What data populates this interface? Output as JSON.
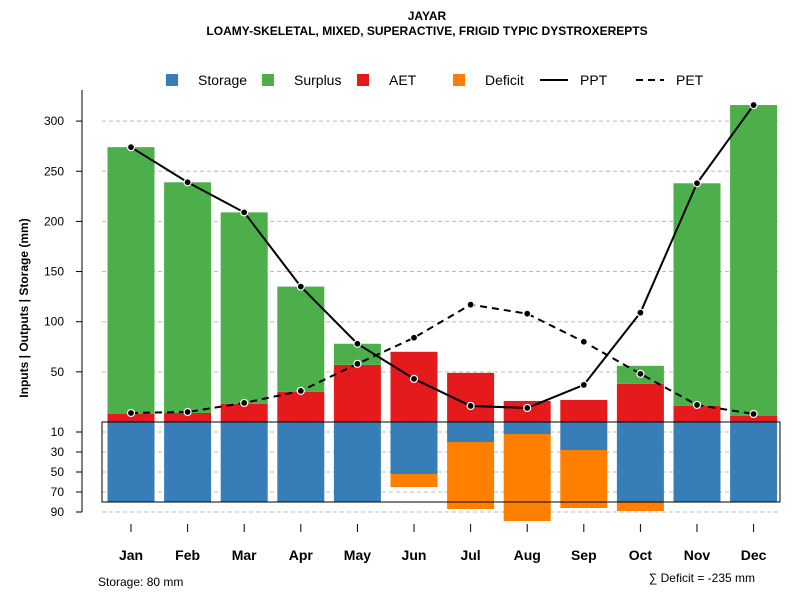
{
  "chart_data": {
    "type": "bar",
    "title": "JAYAR",
    "subtitle": "LOAMY-SKELETAL, MIXED, SUPERACTIVE, FRIGID TYPIC DYSTROXEREPTS",
    "ylabel": "Inputs | Outputs | Storage    (mm)",
    "categories": [
      "Jan",
      "Feb",
      "Mar",
      "Apr",
      "May",
      "Jun",
      "Jul",
      "Aug",
      "Sep",
      "Oct",
      "Nov",
      "Dec"
    ],
    "ylim_upper": [
      0,
      330
    ],
    "ylim_lower": [
      0,
      100
    ],
    "upper_ticks": [
      50,
      100,
      150,
      200,
      250,
      300
    ],
    "lower_ticks": [
      10,
      30,
      50,
      70,
      90
    ],
    "legend": [
      "Storage",
      "Surplus",
      "AET",
      "Deficit",
      "PPT",
      "PET"
    ],
    "series": [
      {
        "name": "AET",
        "values": [
          8,
          9,
          18,
          30,
          57,
          70,
          49,
          21,
          22,
          38,
          16,
          6
        ]
      },
      {
        "name": "Surplus",
        "values": [
          266,
          230,
          191,
          105,
          21,
          0,
          0,
          0,
          0,
          18,
          222,
          310
        ]
      },
      {
        "name": "Storage",
        "values": [
          80,
          80,
          80,
          80,
          80,
          52,
          20,
          12,
          28,
          80,
          80,
          80
        ]
      },
      {
        "name": "Deficit",
        "values": [
          0,
          0,
          0,
          0,
          0,
          13,
          67,
          87,
          58,
          9,
          0,
          0
        ]
      },
      {
        "name": "PPT",
        "values": [
          274,
          239,
          209,
          135,
          78,
          43,
          16,
          14,
          37,
          109,
          238,
          316
        ]
      },
      {
        "name": "PET",
        "values": [
          9,
          10,
          19,
          31,
          58,
          84,
          117,
          108,
          80,
          48,
          17,
          8
        ]
      }
    ],
    "footer_left": "Storage: 80 mm",
    "footer_right": "∑ Deficit = -235 mm"
  },
  "colors": {
    "storage": "#377EB8",
    "surplus": "#4DAF4A",
    "aet": "#E41A1C",
    "deficit": "#FF7F00",
    "grid": "#bbbbbb",
    "line": "#000000"
  }
}
